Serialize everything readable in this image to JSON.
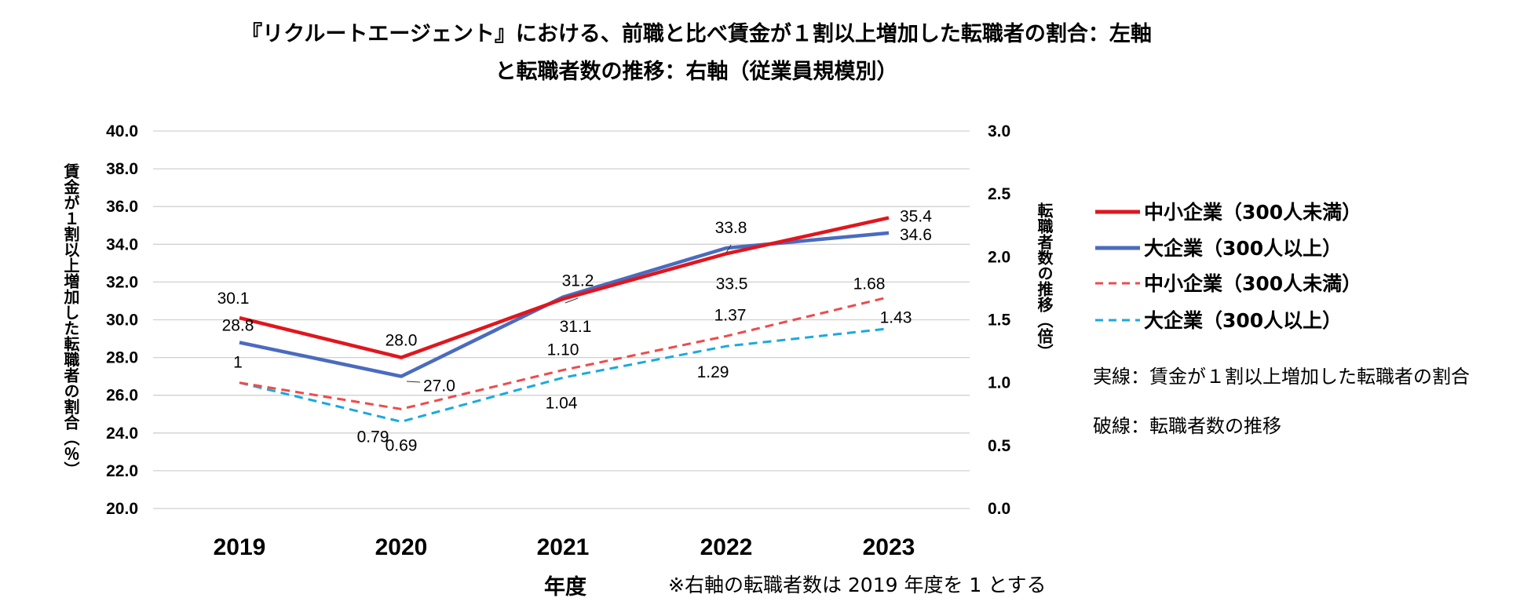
{
  "chart_data": {
    "type": "line",
    "title_line1": "『リクルートエージェント』における、前職と比べ賃金が１割以上増加した転職者の割合：左軸",
    "title_line2": "と転職者数の推移：右軸（従業員規模別）",
    "xlabel": "年度",
    "ylabel_left": "賃金が１割以上増加した転職者の割合（％）",
    "ylabel_right": "転職者数の推移（倍）",
    "footnote": "※右軸の転職者数は 2019 年度を 1 とする",
    "categories": [
      "2019",
      "2020",
      "2021",
      "2022",
      "2023"
    ],
    "ylim_left": [
      20,
      40
    ],
    "yticks_left": [
      "20.0",
      "22.0",
      "24.0",
      "26.0",
      "28.0",
      "30.0",
      "32.0",
      "34.0",
      "36.0",
      "38.0",
      "40.0"
    ],
    "ylim_right": [
      0,
      3
    ],
    "yticks_right": [
      "0.0",
      "0.5",
      "1.0",
      "1.5",
      "2.0",
      "2.5",
      "3.0"
    ],
    "series": [
      {
        "name": "中小企業（300人未満）",
        "axis": "left",
        "style": "solid",
        "color": "#e0161e",
        "values": [
          30.1,
          28.0,
          31.1,
          33.5,
          35.4
        ],
        "labels": [
          "30.1",
          "28.0",
          "31.1",
          "33.5",
          "35.4"
        ]
      },
      {
        "name": "大企業（300人以上）",
        "axis": "left",
        "style": "solid",
        "color": "#4a6bbf",
        "values": [
          28.8,
          27.0,
          31.2,
          33.8,
          34.6
        ],
        "labels": [
          "28.8",
          "27.0",
          "31.2",
          "33.8",
          "34.6"
        ]
      },
      {
        "name": "中小企業（300人未満）",
        "axis": "right",
        "style": "dashed",
        "color": "#ee4b4b",
        "values": [
          1.0,
          0.79,
          1.1,
          1.37,
          1.68
        ],
        "labels": [
          "1",
          "0.79",
          "1.10",
          "1.37",
          "1.68"
        ]
      },
      {
        "name": "大企業（300人以上）",
        "axis": "right",
        "style": "dashed",
        "color": "#1ba9dd",
        "values": [
          1.0,
          0.69,
          1.04,
          1.29,
          1.43
        ],
        "labels": [
          "",
          "0.69",
          "1.04",
          "1.29",
          "1.43"
        ]
      }
    ],
    "notes": [
      "実線：賃金が１割以上増加した転職者の割合",
      "破線：転職者数の推移"
    ],
    "grid": true,
    "legend_position": "right"
  }
}
